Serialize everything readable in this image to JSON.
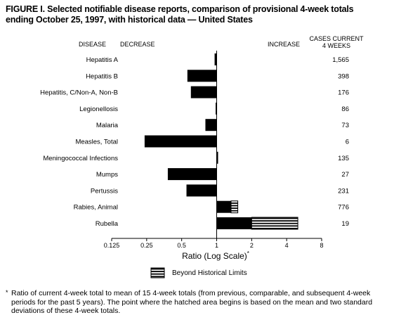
{
  "title_line1": "FIGURE I. Selected notifiable disease reports, comparison of provisional 4-week totals",
  "title_line2": "ending October 25, 1997, with historical data — United States",
  "headers": {
    "disease": "DISEASE",
    "decrease": "DECREASE",
    "increase": "INCREASE",
    "cases_line1": "CASES CURRENT",
    "cases_line2": "4 WEEKS"
  },
  "x_axis_label": "Ratio (Log Scale)",
  "x_axis_label_mark": "*",
  "legend_label": "Beyond Historical Limits",
  "footnote_mark": "*",
  "footnote": "Ratio of current 4-week total to mean of 15 4-week totals (from previous, comparable, and subsequent 4-week periods for the past 5 years). The point where the hatched area begins is based on the mean and two standard deviations of these 4-week totals.",
  "chart_data": {
    "type": "bar",
    "orientation": "horizontal",
    "scale": "log2",
    "xlim": [
      0.125,
      8
    ],
    "xticks": [
      "0.125",
      "0.25",
      "0.5",
      "1",
      "2",
      "4",
      "8"
    ],
    "xtick_values": [
      0.125,
      0.25,
      0.5,
      1,
      2,
      4,
      8
    ],
    "baseline": 1,
    "categories": [
      "Hepatitis A",
      "Hepatitis B",
      "Hepatitis, C/Non-A, Non-B",
      "Legionellosis",
      "Malaria",
      "Measles, Total",
      "Meningococcal Infections",
      "Mumps",
      "Pertussis",
      "Rabies, Animal",
      "Rubella"
    ],
    "ratios": [
      0.96,
      0.56,
      0.6,
      0.98,
      0.8,
      0.24,
      1.02,
      0.38,
      0.55,
      1.52,
      4.99
    ],
    "beyond_limit_start": [
      null,
      null,
      null,
      null,
      null,
      null,
      null,
      null,
      null,
      1.33,
      2.0
    ],
    "cases": [
      "1,565",
      "398",
      "176",
      "86",
      "73",
      "6",
      "135",
      "27",
      "231",
      "776",
      "19"
    ]
  }
}
